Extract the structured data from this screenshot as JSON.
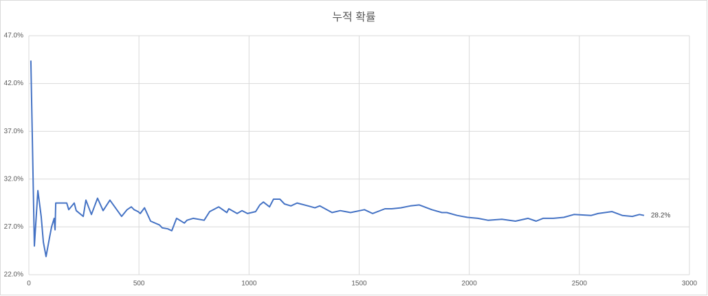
{
  "chart_data": {
    "type": "line",
    "title": "누적 확률",
    "x": [
      9,
      25,
      41,
      56,
      66,
      78,
      94,
      103,
      115,
      119,
      122,
      172,
      181,
      206,
      215,
      247,
      259,
      284,
      312,
      337,
      368,
      421,
      446,
      465,
      478,
      496,
      506,
      525,
      553,
      593,
      606,
      631,
      649,
      671,
      706,
      718,
      746,
      796,
      821,
      862,
      899,
      908,
      946,
      968,
      993,
      1030,
      1049,
      1065,
      1093,
      1111,
      1140,
      1161,
      1190,
      1218,
      1268,
      1299,
      1321,
      1377,
      1414,
      1461,
      1524,
      1561,
      1617,
      1648,
      1689,
      1733,
      1773,
      1830,
      1876,
      1898,
      1945,
      1992,
      2039,
      2085,
      2148,
      2210,
      2267,
      2304,
      2335,
      2382,
      2429,
      2476,
      2554,
      2585,
      2648,
      2695,
      2741,
      2773,
      2794
    ],
    "series": [
      {
        "color": "#4472c4",
        "values": [
          44.4,
          25.0,
          30.8,
          28.1,
          25.4,
          23.9,
          25.9,
          27.0,
          27.9,
          26.7,
          29.5,
          29.5,
          28.8,
          29.5,
          28.7,
          28.1,
          29.8,
          28.3,
          30.0,
          28.7,
          29.8,
          28.1,
          28.8,
          29.1,
          28.8,
          28.6,
          28.4,
          29.0,
          27.6,
          27.2,
          26.9,
          26.8,
          26.6,
          27.9,
          27.4,
          27.7,
          27.9,
          27.7,
          28.6,
          29.1,
          28.5,
          28.9,
          28.4,
          28.7,
          28.4,
          28.6,
          29.3,
          29.6,
          29.1,
          29.9,
          29.9,
          29.4,
          29.2,
          29.5,
          29.2,
          29.0,
          29.2,
          28.5,
          28.7,
          28.5,
          28.8,
          28.4,
          28.9,
          28.9,
          29.0,
          29.2,
          29.3,
          28.8,
          28.5,
          28.5,
          28.2,
          28.0,
          27.9,
          27.7,
          27.8,
          27.6,
          27.9,
          27.6,
          27.9,
          27.9,
          28.0,
          28.3,
          28.2,
          28.4,
          28.6,
          28.2,
          28.1,
          28.3,
          28.2
        ],
        "value_labels": [
          null,
          null,
          null,
          null,
          null,
          null,
          null,
          null,
          null,
          null,
          null,
          null,
          null,
          null,
          null,
          null,
          null,
          null,
          null,
          null,
          null,
          null,
          null,
          null,
          null,
          null,
          null,
          null,
          null,
          null,
          null,
          null,
          null,
          null,
          null,
          null,
          null,
          null,
          null,
          null,
          null,
          null,
          null,
          null,
          null,
          null,
          null,
          null,
          null,
          null,
          null,
          null,
          null,
          null,
          null,
          null,
          null,
          null,
          null,
          null,
          null,
          null,
          null,
          null,
          null,
          null,
          null,
          null,
          null,
          null,
          null,
          null,
          null,
          null,
          null,
          null,
          null,
          null,
          null,
          null,
          null,
          null,
          null,
          null,
          null,
          null,
          null,
          null,
          "28.2%"
        ]
      }
    ],
    "xlim": [
      0,
      3000
    ],
    "xticks": [
      0,
      500,
      1000,
      1500,
      2000,
      2500,
      3000
    ],
    "ylim": [
      22,
      47
    ],
    "yticks": [
      {
        "value": 22,
        "label": "22.0%"
      },
      {
        "value": 27,
        "label": "27.0%"
      },
      {
        "value": 32,
        "label": "32.0%"
      },
      {
        "value": 37,
        "label": "37.0%"
      },
      {
        "value": 42,
        "label": "42.0%"
      },
      {
        "value": 47,
        "label": "47.0%"
      }
    ],
    "grid": true
  }
}
